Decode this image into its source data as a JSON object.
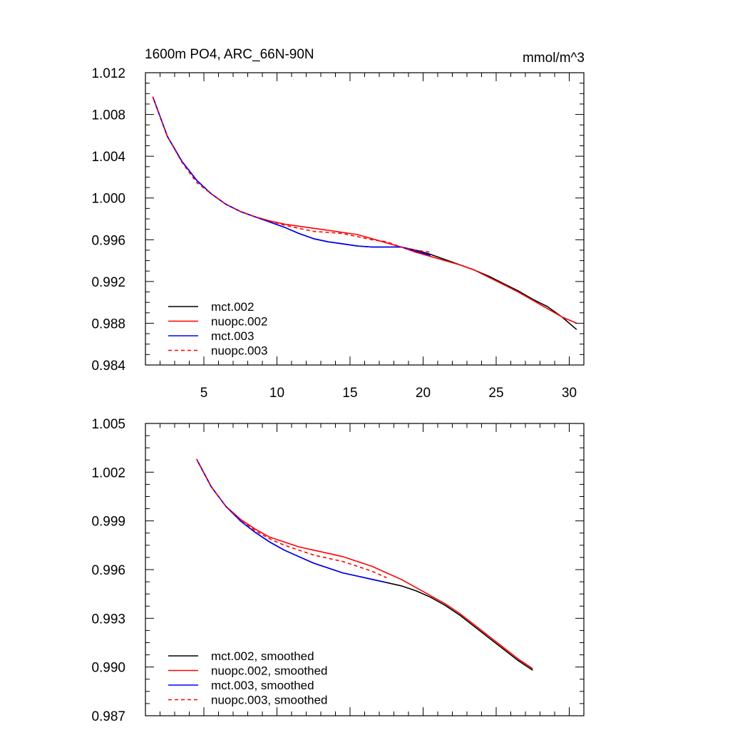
{
  "chart_data": [
    {
      "type": "line",
      "title": "1600m PO4, ARC_66N-90N",
      "units": "mmol/m^3",
      "xlim": [
        1,
        31
      ],
      "ylim": [
        0.984,
        1.012
      ],
      "x_ticks": [
        5,
        10,
        15,
        20,
        25,
        30
      ],
      "x_tick_labels": [
        "5",
        "10",
        "15",
        "20",
        "25",
        "30"
      ],
      "y_ticks": [
        0.984,
        0.988,
        0.992,
        0.996,
        1.0,
        1.004,
        1.008,
        1.012
      ],
      "y_tick_labels": [
        "0.984",
        "0.988",
        "0.992",
        "0.996",
        "1.000",
        "1.004",
        "1.008",
        "1.012"
      ],
      "legend_location": "bottom-left",
      "series": [
        {
          "name": "mct.002",
          "color": "#000000",
          "dash": "solid",
          "x": [
            1.5,
            2.5,
            3.5,
            4.5,
            5.5,
            6.5,
            7.5,
            8.5,
            9.5,
            10.5,
            11.5,
            12.5,
            13.5,
            14.5,
            15.5,
            16.5,
            17.5,
            18.5,
            19.5,
            20.5,
            21.5,
            22.5,
            23.5,
            24.5,
            25.5,
            26.5,
            27.5,
            28.5,
            29.5,
            30.5
          ],
          "y": [
            1.0097,
            1.0059,
            1.0035,
            1.0017,
            1.0004,
            0.9994,
            0.9987,
            0.9982,
            0.9977,
            0.9972,
            0.9966,
            0.9961,
            0.9958,
            0.9956,
            0.9954,
            0.9953,
            0.9953,
            0.9953,
            0.995,
            0.9946,
            0.9941,
            0.9936,
            0.9931,
            0.9925,
            0.9918,
            0.9911,
            0.9903,
            0.9896,
            0.9886,
            0.9874
          ]
        },
        {
          "name": "nuopc.002",
          "color": "#ff0000",
          "dash": "solid",
          "x": [
            1.5,
            2.5,
            3.5,
            4.5,
            5.5,
            6.5,
            7.5,
            8.5,
            9.5,
            10.5,
            11.5,
            12.5,
            13.5,
            14.5,
            15.5,
            16.5,
            17.5,
            18.5,
            19.5,
            20.5,
            21.5,
            22.5,
            23.5,
            24.5,
            25.5,
            26.5,
            27.5,
            28.5,
            29.5,
            30.5
          ],
          "y": [
            1.0097,
            1.0059,
            1.0035,
            1.0017,
            1.0004,
            0.9994,
            0.9987,
            0.9982,
            0.9978,
            0.9975,
            0.9973,
            0.9971,
            0.9969,
            0.9967,
            0.9965,
            0.9961,
            0.9957,
            0.9953,
            0.9948,
            0.9944,
            0.994,
            0.9936,
            0.9931,
            0.9924,
            0.9917,
            0.991,
            0.9902,
            0.9894,
            0.9886,
            0.988
          ]
        },
        {
          "name": "mct.003",
          "color": "#0000ff",
          "dash": "solid",
          "x": [
            1.5,
            2.5,
            3.5,
            4.5,
            5.5,
            6.5,
            7.5,
            8.5,
            9.5,
            10.5,
            11.5,
            12.5,
            13.5,
            14.5,
            15.5,
            16.5,
            17.5,
            18.5,
            19.5,
            20.5
          ],
          "y": [
            1.0097,
            1.0059,
            1.0035,
            1.0017,
            1.0004,
            0.9994,
            0.9987,
            0.9982,
            0.9977,
            0.9972,
            0.9966,
            0.9961,
            0.9958,
            0.9956,
            0.9954,
            0.9953,
            0.9953,
            0.9953,
            0.9949,
            0.9945
          ]
        },
        {
          "name": "nuopc.003",
          "color": "#ff0000",
          "dash": "dashed",
          "x": [
            1.5,
            2.5,
            3.5,
            4.5,
            5.5,
            6.5,
            7.5,
            8.5,
            9.5,
            10.5,
            11.5,
            12.5,
            13.5,
            14.5,
            15.5,
            16.5,
            17.5,
            18.5,
            19.5,
            20.5
          ],
          "y": [
            1.0097,
            1.0059,
            1.0034,
            1.0015,
            1.0004,
            0.9994,
            0.9987,
            0.9982,
            0.9978,
            0.9974,
            0.9971,
            0.9968,
            0.9967,
            0.9966,
            0.9963,
            0.996,
            0.9958,
            0.9953,
            0.995,
            0.9948
          ]
        }
      ]
    },
    {
      "type": "line",
      "xlim": [
        1,
        31
      ],
      "ylim": [
        0.987,
        1.005
      ],
      "x_ticks": [
        5,
        10,
        15,
        20,
        25,
        30
      ],
      "y_ticks": [
        0.987,
        0.99,
        0.993,
        0.996,
        0.999,
        1.002,
        1.005
      ],
      "y_tick_labels": [
        "0.987",
        "0.990",
        "0.993",
        "0.996",
        "0.999",
        "1.002",
        "1.005"
      ],
      "legend_location": "bottom-left",
      "series": [
        {
          "name": "mct.002, smoothed",
          "color": "#000000",
          "dash": "solid",
          "x": [
            4.5,
            5.5,
            6.5,
            7.5,
            8.5,
            9.5,
            10.5,
            11.5,
            12.5,
            13.5,
            14.5,
            15.5,
            16.5,
            17.5,
            18.5,
            19.5,
            20.5,
            21.5,
            22.5,
            23.5,
            24.5,
            25.5,
            26.5,
            27.5
          ],
          "y": [
            1.0028,
            1.0011,
            0.9999,
            0.999,
            0.9983,
            0.9977,
            0.9972,
            0.9968,
            0.9964,
            0.9961,
            0.9958,
            0.9956,
            0.9954,
            0.9952,
            0.995,
            0.9947,
            0.9943,
            0.9938,
            0.9932,
            0.9925,
            0.9918,
            0.9911,
            0.9904,
            0.9898
          ]
        },
        {
          "name": "nuopc.002, smoothed",
          "color": "#ff0000",
          "dash": "solid",
          "x": [
            4.5,
            5.5,
            6.5,
            7.5,
            8.5,
            9.5,
            10.5,
            11.5,
            12.5,
            13.5,
            14.5,
            15.5,
            16.5,
            17.5,
            18.5,
            19.5,
            20.5,
            21.5,
            22.5,
            23.5,
            24.5,
            25.5,
            26.5,
            27.5
          ],
          "y": [
            1.0028,
            1.0011,
            0.9999,
            0.9991,
            0.9985,
            0.998,
            0.9977,
            0.9974,
            0.9972,
            0.997,
            0.9968,
            0.9965,
            0.9962,
            0.9958,
            0.9954,
            0.9949,
            0.9944,
            0.9939,
            0.9933,
            0.9926,
            0.9919,
            0.9912,
            0.9905,
            0.9899
          ]
        },
        {
          "name": "mct.003, smoothed",
          "color": "#0000ff",
          "dash": "solid",
          "x": [
            4.5,
            5.5,
            6.5,
            7.5,
            8.5,
            9.5,
            10.5,
            11.5,
            12.5,
            13.5,
            14.5,
            15.5,
            16.5,
            17.5
          ],
          "y": [
            1.0028,
            1.0011,
            0.9999,
            0.999,
            0.9983,
            0.9977,
            0.9972,
            0.9968,
            0.9964,
            0.9961,
            0.9958,
            0.9956,
            0.9954,
            0.9952
          ]
        },
        {
          "name": "nuopc.003, smoothed",
          "color": "#ff0000",
          "dash": "dashed",
          "x": [
            4.5,
            5.5,
            6.5,
            7.5,
            8.5,
            9.5,
            10.5,
            11.5,
            12.5,
            13.5,
            14.5,
            15.5,
            16.5,
            17.5
          ],
          "y": [
            1.0028,
            1.0011,
            0.9999,
            0.9991,
            0.9984,
            0.9979,
            0.9975,
            0.9972,
            0.9969,
            0.9967,
            0.9965,
            0.9962,
            0.9959,
            0.9955
          ]
        }
      ]
    }
  ]
}
